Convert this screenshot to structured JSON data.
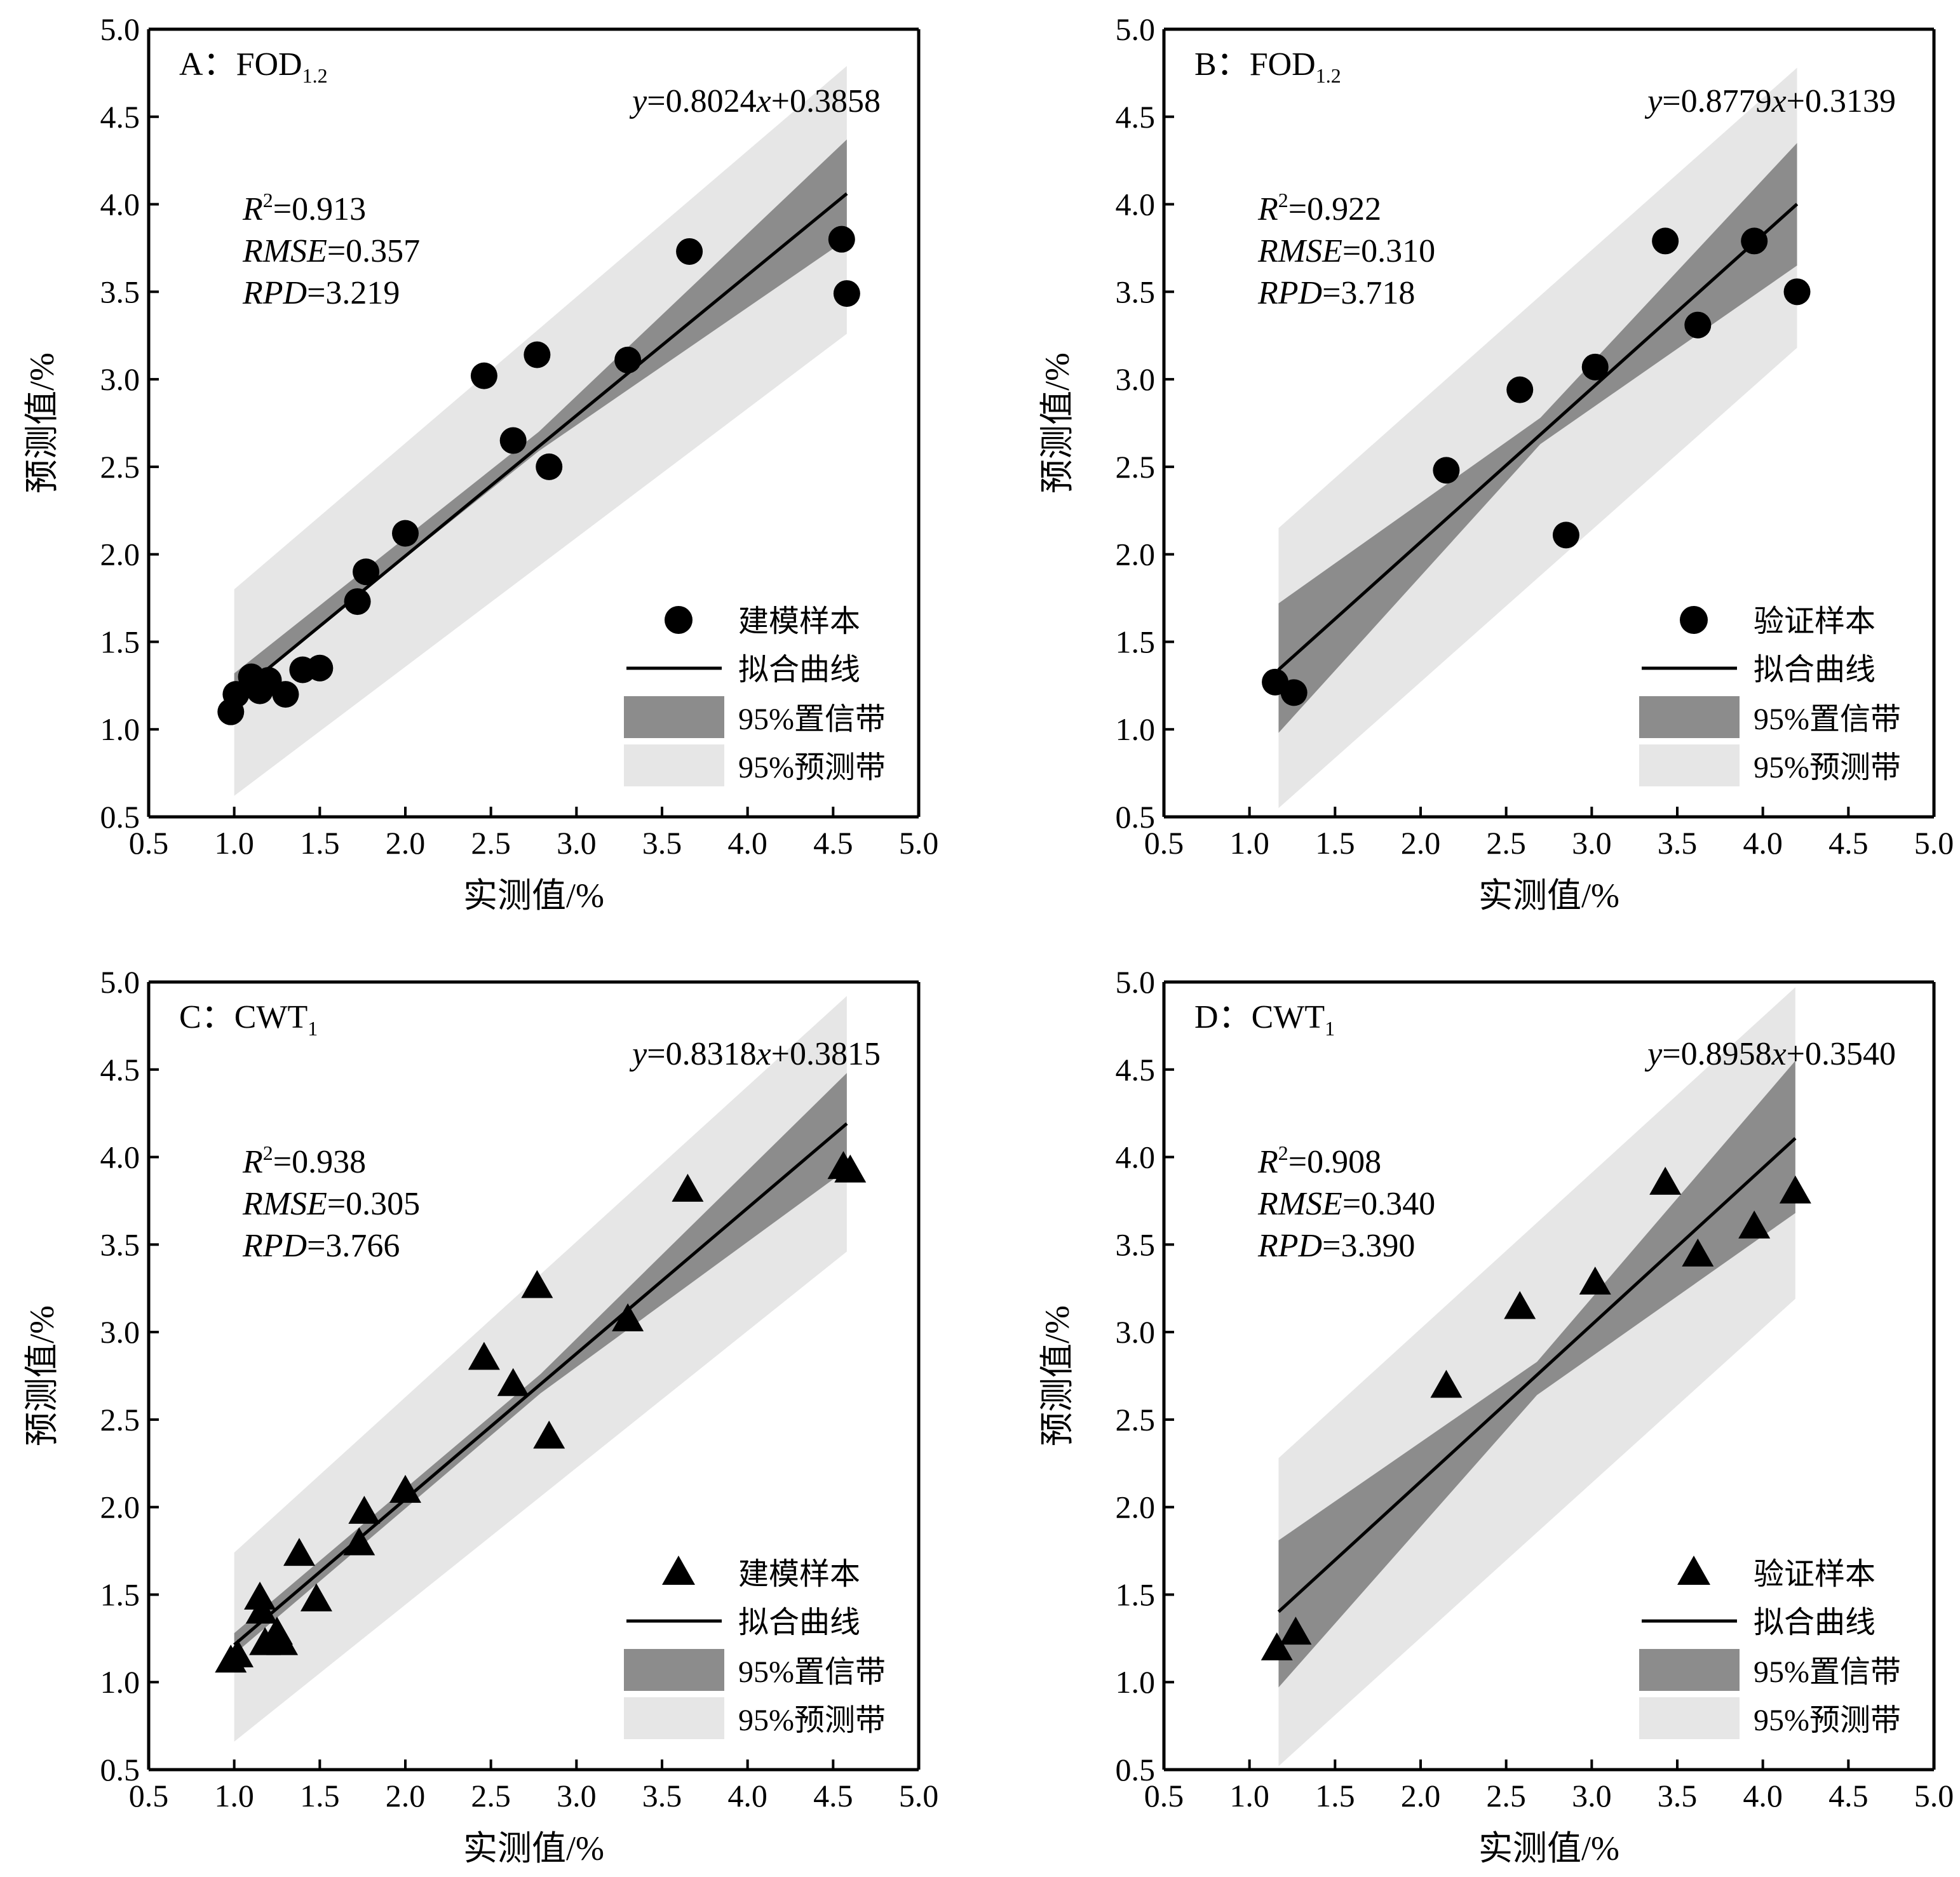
{
  "chart_data": [
    {
      "type": "scatter",
      "panel_label": "A：",
      "title": {
        "main": "FOD",
        "sub": "1.2"
      },
      "xlabel": "实测值/%",
      "ylabel": "预测值/%",
      "xlim": [
        0.5,
        5.0
      ],
      "ylim": [
        0.5,
        5.0
      ],
      "ticks": [
        "0.5",
        "1.0",
        "1.5",
        "2.0",
        "2.5",
        "3.0",
        "3.5",
        "4.0",
        "4.5",
        "5.0"
      ],
      "marker": "circle",
      "equation": {
        "slope": "0.8024",
        "intercept": "0.3858"
      },
      "stats": {
        "r2": "0.913",
        "rmse": "0.357",
        "rpd": "3.219"
      },
      "legend": {
        "points": "建模样本",
        "fit": "拟合曲线",
        "confidence": "95%置信带",
        "prediction": "95%预测带"
      },
      "points": [
        [
          0.98,
          1.1
        ],
        [
          1.01,
          1.2
        ],
        [
          1.1,
          1.3
        ],
        [
          1.15,
          1.22
        ],
        [
          1.2,
          1.28
        ],
        [
          1.3,
          1.2
        ],
        [
          1.4,
          1.34
        ],
        [
          1.5,
          1.35
        ],
        [
          1.72,
          1.73
        ],
        [
          1.77,
          1.9
        ],
        [
          2.0,
          2.12
        ],
        [
          2.46,
          3.02
        ],
        [
          2.63,
          2.65
        ],
        [
          2.77,
          3.14
        ],
        [
          2.84,
          2.5
        ],
        [
          3.3,
          3.11
        ],
        [
          3.66,
          3.73
        ],
        [
          4.55,
          3.8
        ],
        [
          4.58,
          3.49
        ]
      ],
      "fit_range": [
        1.0,
        4.58
      ],
      "confidence_band": [
        [
          1.0,
          1.2,
          1.32
        ],
        [
          2.78,
          2.59,
          2.7
        ],
        [
          4.58,
          3.8,
          4.37
        ]
      ],
      "prediction_band": [
        [
          1.0,
          0.62,
          1.8
        ],
        [
          4.58,
          3.26,
          4.79
        ]
      ]
    },
    {
      "type": "scatter",
      "panel_label": "B：",
      "title": {
        "main": "FOD",
        "sub": "1.2"
      },
      "xlabel": "实测值/%",
      "ylabel": "预测值/%",
      "xlim": [
        0.5,
        5.0
      ],
      "ylim": [
        0.5,
        5.0
      ],
      "ticks": [
        "0.5",
        "1.0",
        "1.5",
        "2.0",
        "2.5",
        "3.0",
        "3.5",
        "4.0",
        "4.5",
        "5.0"
      ],
      "marker": "circle",
      "equation": {
        "slope": "0.8779",
        "intercept": "0.3139"
      },
      "stats": {
        "r2": "0.922",
        "rmse": "0.310",
        "rpd": "3.718"
      },
      "legend": {
        "points": "验证样本",
        "fit": "拟合曲线",
        "confidence": "95%置信带",
        "prediction": "95%预测带"
      },
      "points": [
        [
          1.15,
          1.27
        ],
        [
          1.26,
          1.21
        ],
        [
          2.15,
          2.48
        ],
        [
          2.58,
          2.94
        ],
        [
          2.85,
          2.11
        ],
        [
          3.02,
          3.07
        ],
        [
          3.43,
          3.79
        ],
        [
          3.62,
          3.31
        ],
        [
          3.95,
          3.79
        ],
        [
          4.2,
          3.5
        ]
      ],
      "fit_range": [
        1.17,
        4.2
      ],
      "confidence_band": [
        [
          1.17,
          0.98,
          1.72
        ],
        [
          2.7,
          2.63,
          2.78
        ],
        [
          4.2,
          3.65,
          4.35
        ]
      ],
      "prediction_band": [
        [
          1.17,
          0.55,
          2.15
        ],
        [
          4.2,
          3.18,
          4.78
        ]
      ]
    },
    {
      "type": "scatter",
      "panel_label": "C：",
      "title": {
        "main": "CWT",
        "sub": "1"
      },
      "xlabel": "实测值/%",
      "ylabel": "预测值/%",
      "xlim": [
        0.5,
        5.0
      ],
      "ylim": [
        0.5,
        5.0
      ],
      "ticks": [
        "0.5",
        "1.0",
        "1.5",
        "2.0",
        "2.5",
        "3.0",
        "3.5",
        "4.0",
        "4.5",
        "5.0"
      ],
      "marker": "triangle",
      "equation": {
        "slope": "0.8318",
        "intercept": "0.3815"
      },
      "stats": {
        "r2": "0.938",
        "rmse": "0.305",
        "rpd": "3.766"
      },
      "legend": {
        "points": "建模样本",
        "fit": "拟合曲线",
        "confidence": "95%置信带",
        "prediction": "95%预测带"
      },
      "points": [
        [
          0.98,
          1.12
        ],
        [
          1.02,
          1.15
        ],
        [
          1.15,
          1.48
        ],
        [
          1.16,
          1.4
        ],
        [
          1.18,
          1.22
        ],
        [
          1.25,
          1.28
        ],
        [
          1.28,
          1.22
        ],
        [
          1.38,
          1.73
        ],
        [
          1.48,
          1.47
        ],
        [
          1.73,
          1.79
        ],
        [
          1.76,
          1.97
        ],
        [
          2.0,
          2.09
        ],
        [
          2.46,
          2.85
        ],
        [
          2.63,
          2.7
        ],
        [
          2.77,
          3.26
        ],
        [
          2.84,
          2.4
        ],
        [
          3.3,
          3.07
        ],
        [
          3.65,
          3.81
        ],
        [
          4.56,
          3.94
        ],
        [
          4.6,
          3.92
        ]
      ],
      "fit_range": [
        1.0,
        4.58
      ],
      "confidence_band": [
        [
          1.0,
          1.16,
          1.28
        ],
        [
          2.79,
          2.65,
          2.76
        ],
        [
          4.58,
          3.93,
          4.48
        ]
      ],
      "prediction_band": [
        [
          1.0,
          0.66,
          1.74
        ],
        [
          4.58,
          3.46,
          4.92
        ]
      ]
    },
    {
      "type": "scatter",
      "panel_label": "D：",
      "title": {
        "main": "CWT",
        "sub": "1"
      },
      "xlabel": "实测值/%",
      "ylabel": "预测值/%",
      "xlim": [
        0.5,
        5.0
      ],
      "ylim": [
        0.5,
        5.0
      ],
      "ticks": [
        "0.5",
        "1.0",
        "1.5",
        "2.0",
        "2.5",
        "3.0",
        "3.5",
        "4.0",
        "4.5",
        "5.0"
      ],
      "marker": "triangle",
      "equation": {
        "slope": "0.8958",
        "intercept": "0.3540"
      },
      "stats": {
        "r2": "0.908",
        "rmse": "0.340",
        "rpd": "3.390"
      },
      "legend": {
        "points": "验证样本",
        "fit": "拟合曲线",
        "confidence": "95%置信带",
        "prediction": "95%预测带"
      },
      "points": [
        [
          1.16,
          1.19
        ],
        [
          1.27,
          1.28
        ],
        [
          2.15,
          2.69
        ],
        [
          2.58,
          3.14
        ],
        [
          3.02,
          3.28
        ],
        [
          3.43,
          3.85
        ],
        [
          3.62,
          3.44
        ],
        [
          3.95,
          3.6
        ],
        [
          4.19,
          3.8
        ]
      ],
      "fit_range": [
        1.17,
        4.19
      ],
      "confidence_band": [
        [
          1.17,
          0.97,
          1.81
        ],
        [
          2.68,
          2.64,
          2.83
        ],
        [
          4.19,
          3.68,
          4.55
        ]
      ],
      "prediction_band": [
        [
          1.17,
          0.52,
          2.28
        ],
        [
          4.19,
          3.19,
          4.97
        ]
      ]
    }
  ]
}
